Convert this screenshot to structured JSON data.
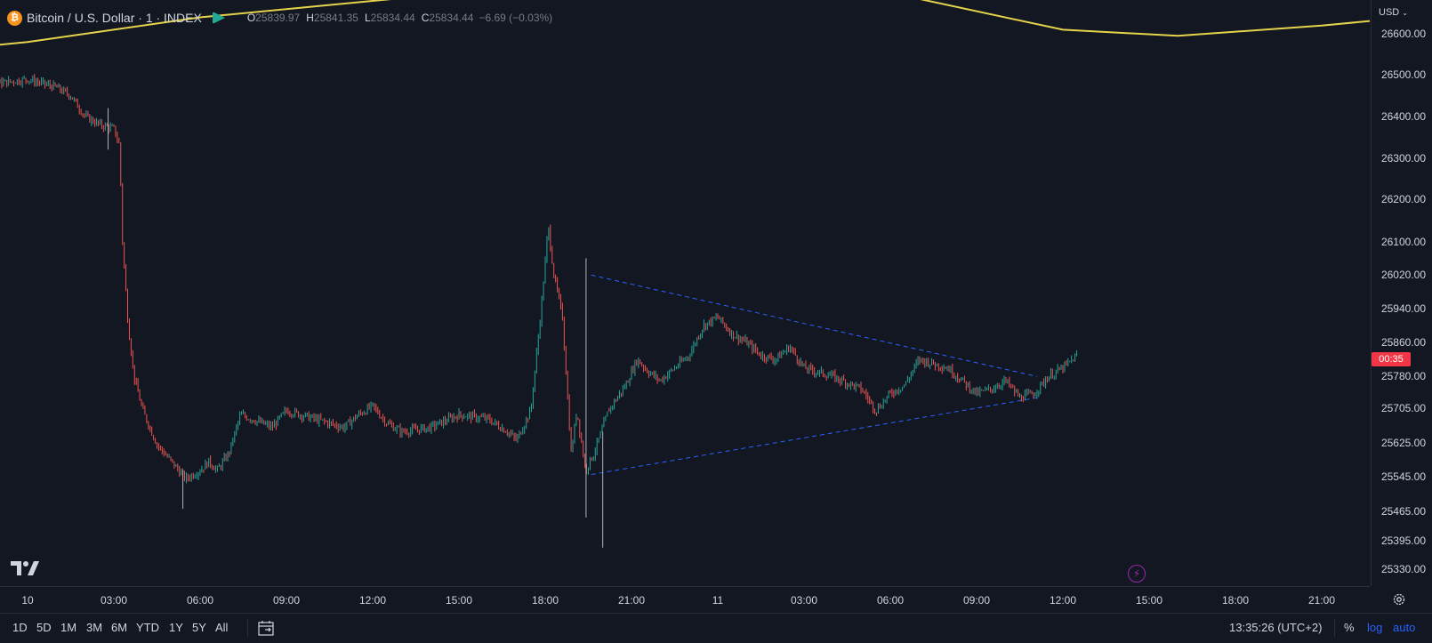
{
  "legend": {
    "symbol_title": "Bitcoin / U.S. Dollar · 1 · INDEX",
    "icon": "bitcoin-icon",
    "open_key": "O",
    "open": "25839.97",
    "high_key": "H",
    "high": "25841.35",
    "low_key": "L",
    "low": "25834.44",
    "close_key": "C",
    "close": "25834.44",
    "change": "−6.69 (−0.03%)"
  },
  "price_scale": {
    "currency": "USD",
    "labels": [
      "26600.00",
      "26500.00",
      "26400.00",
      "26300.00",
      "26200.00",
      "26100.00",
      "26020.00",
      "25940.00",
      "25860.00",
      "25780.00",
      "25705.00",
      "25625.00",
      "25545.00",
      "25465.00",
      "25395.00",
      "25330.00"
    ],
    "countdown": "00:35"
  },
  "time_axis": {
    "labels": [
      "10",
      "03:00",
      "06:00",
      "09:00",
      "12:00",
      "15:00",
      "18:00",
      "21:00",
      "11",
      "03:00",
      "06:00",
      "09:00",
      "12:00",
      "15:00",
      "18:00",
      "21:00"
    ]
  },
  "bottom_bar": {
    "ranges": [
      "1D",
      "5D",
      "1M",
      "3M",
      "6M",
      "YTD",
      "1Y",
      "5Y",
      "All"
    ],
    "clock": "13:35:26 (UTC+2)",
    "percent": "%",
    "log": "log",
    "auto": "auto"
  },
  "colors": {
    "background": "#131722",
    "up": "#26a69a",
    "down": "#ef5350",
    "ma": "#e5d34b",
    "trendline": "#2962ff",
    "price_tag": "#f23645"
  },
  "chart_data": {
    "type": "candlestick",
    "interval": "1 minute",
    "y_scale": "log",
    "trend_upper": [
      [
        19.6,
        26020
      ],
      [
        35.1,
        25780
      ]
    ],
    "trend_lower": [
      [
        19.6,
        25550
      ],
      [
        35.1,
        25730
      ]
    ],
    "ma_curve": [
      [
        -3.0,
        26560
      ],
      [
        0,
        26580
      ],
      [
        6,
        26640
      ],
      [
        12,
        26680
      ],
      [
        18,
        26720
      ],
      [
        24,
        26760
      ],
      [
        30,
        26700
      ],
      [
        36,
        26610
      ],
      [
        40,
        26595
      ],
      [
        45,
        26620
      ],
      [
        48,
        26640
      ]
    ],
    "price_path": [
      [
        -3.0,
        26460
      ],
      [
        -2.0,
        26490
      ],
      [
        -1.0,
        26480
      ],
      [
        0,
        26490
      ],
      [
        0.5,
        26480
      ],
      [
        1.0,
        26470
      ],
      [
        1.5,
        26450
      ],
      [
        2.0,
        26400
      ],
      [
        2.5,
        26380
      ],
      [
        3.0,
        26370
      ],
      [
        3.2,
        26330
      ],
      [
        3.3,
        26100
      ],
      [
        3.5,
        25900
      ],
      [
        3.7,
        25780
      ],
      [
        4.0,
        25700
      ],
      [
        4.5,
        25620
      ],
      [
        5.0,
        25580
      ],
      [
        5.5,
        25540
      ],
      [
        6.0,
        25560
      ],
      [
        6.3,
        25580
      ],
      [
        6.6,
        25560
      ],
      [
        7.0,
        25600
      ],
      [
        7.4,
        25690
      ],
      [
        7.8,
        25680
      ],
      [
        8.5,
        25660
      ],
      [
        9.0,
        25700
      ],
      [
        9.5,
        25690
      ],
      [
        10.0,
        25680
      ],
      [
        11.0,
        25660
      ],
      [
        11.5,
        25690
      ],
      [
        12.0,
        25710
      ],
      [
        12.5,
        25670
      ],
      [
        13.0,
        25650
      ],
      [
        14.0,
        25660
      ],
      [
        15.0,
        25690
      ],
      [
        16.0,
        25680
      ],
      [
        16.7,
        25650
      ],
      [
        17.0,
        25630
      ],
      [
        17.5,
        25700
      ],
      [
        17.8,
        25900
      ],
      [
        18.0,
        26050
      ],
      [
        18.1,
        26140
      ],
      [
        18.3,
        26020
      ],
      [
        18.6,
        25920
      ],
      [
        18.9,
        25600
      ],
      [
        19.1,
        25700
      ],
      [
        19.4,
        25560
      ],
      [
        19.7,
        25600
      ],
      [
        20.2,
        25700
      ],
      [
        20.8,
        25760
      ],
      [
        21.2,
        25820
      ],
      [
        21.6,
        25790
      ],
      [
        22.0,
        25770
      ],
      [
        22.5,
        25800
      ],
      [
        23.0,
        25830
      ],
      [
        23.5,
        25900
      ],
      [
        24.0,
        25920
      ],
      [
        24.5,
        25880
      ],
      [
        25.0,
        25860
      ],
      [
        25.5,
        25830
      ],
      [
        26.0,
        25820
      ],
      [
        26.5,
        25850
      ],
      [
        27.0,
        25800
      ],
      [
        27.5,
        25790
      ],
      [
        28.0,
        25780
      ],
      [
        29.0,
        25750
      ],
      [
        29.5,
        25700
      ],
      [
        30.0,
        25740
      ],
      [
        30.5,
        25760
      ],
      [
        31.0,
        25820
      ],
      [
        31.5,
        25810
      ],
      [
        32.0,
        25800
      ],
      [
        32.5,
        25770
      ],
      [
        33.0,
        25740
      ],
      [
        33.5,
        25750
      ],
      [
        34.0,
        25770
      ],
      [
        34.5,
        25730
      ],
      [
        35.0,
        25740
      ],
      [
        35.5,
        25780
      ],
      [
        36.0,
        25800
      ],
      [
        36.5,
        25830
      ]
    ],
    "wicks": [
      [
        19.42,
        25450,
        26060
      ],
      [
        20.0,
        25380,
        25650
      ],
      [
        2.8,
        26320,
        26420
      ],
      [
        5.4,
        25470,
        25560
      ]
    ]
  }
}
